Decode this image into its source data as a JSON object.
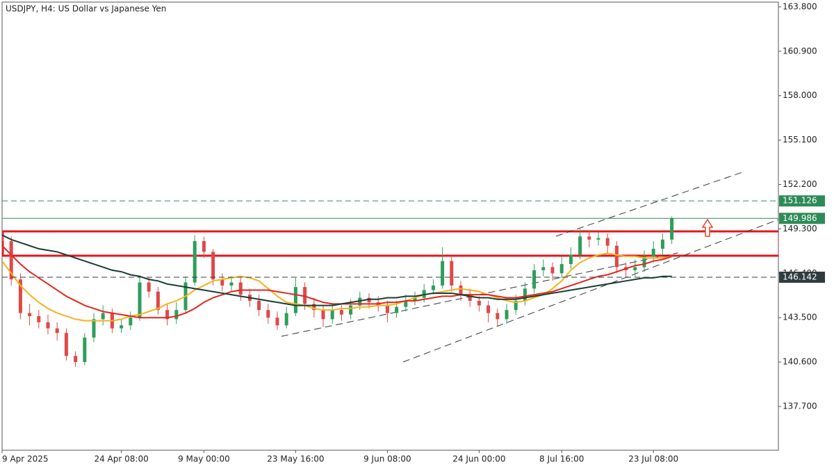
{
  "chart_data": {
    "type": "candlestick",
    "title": "USDJPY, H4:  US Dollar vs Japanese Yen",
    "categories": [
      "9 Apr 2025",
      null,
      null,
      null,
      null,
      null,
      null,
      null,
      null,
      null,
      null,
      null,
      null,
      "24 Apr 08:00",
      null,
      null,
      null,
      null,
      null,
      null,
      null,
      null,
      "9 May 00:00",
      null,
      null,
      null,
      null,
      null,
      null,
      null,
      null,
      null,
      "23 May 16:00",
      null,
      null,
      null,
      null,
      null,
      null,
      null,
      null,
      null,
      "9 Jun 08:00",
      null,
      null,
      null,
      null,
      null,
      null,
      null,
      null,
      null,
      "24 Jun 00:00",
      null,
      null,
      null,
      null,
      null,
      null,
      null,
      null,
      "8 Jul 16:00",
      null,
      null,
      null,
      null,
      null,
      null,
      null,
      null,
      null,
      "23 Jul 08:00",
      null,
      null
    ],
    "open": [
      148.9,
      148.5,
      146.0,
      143.8,
      143.6,
      143.2,
      142.8,
      142.5,
      141.0,
      140.6,
      142.2,
      143.4,
      143.8,
      142.8,
      143.0,
      143.5,
      145.8,
      145.2,
      144.0,
      143.4,
      144.0,
      145.8,
      148.5,
      147.8,
      146.0,
      145.6,
      145.8,
      145.0,
      144.6,
      144.0,
      143.5,
      143.0,
      143.8,
      145.5,
      144.4,
      144.0,
      143.4,
      144.0,
      143.7,
      144.3,
      144.8,
      144.5,
      144.3,
      143.8,
      144.2,
      144.6,
      144.8,
      145.3,
      145.6,
      147.2,
      145.6,
      145.0,
      144.6,
      144.3,
      143.8,
      143.4,
      144.0,
      144.6,
      145.4,
      146.6,
      146.8,
      146.4,
      147.0,
      147.6,
      148.8,
      148.6,
      148.7,
      148.2,
      146.8,
      146.6,
      146.8,
      147.5,
      148.0,
      148.6
    ],
    "high": [
      149.2,
      148.8,
      146.4,
      144.4,
      144.0,
      143.7,
      143.2,
      142.8,
      141.3,
      142.5,
      143.8,
      144.3,
      144.1,
      143.4,
      143.9,
      146.2,
      146.1,
      145.5,
      144.4,
      144.5,
      146.2,
      148.9,
      148.8,
      148.0,
      146.4,
      146.2,
      146.1,
      145.4,
      145.0,
      144.4,
      143.9,
      144.2,
      146.1,
      145.8,
      144.8,
      144.3,
      144.4,
      144.3,
      144.7,
      145.2,
      145.1,
      144.9,
      144.6,
      144.6,
      145.0,
      145.2,
      145.7,
      146.0,
      148.1,
      147.5,
      145.9,
      145.4,
      144.9,
      144.6,
      144.1,
      144.4,
      145.0,
      145.8,
      147.0,
      147.3,
      147.1,
      147.5,
      148.1,
      149.3,
      149.2,
      149.1,
      149.0,
      148.5,
      147.1,
      147.3,
      147.9,
      148.5,
      149.0,
      150.1
    ],
    "low": [
      147.8,
      145.6,
      143.4,
      143.0,
      142.8,
      142.4,
      142.0,
      140.7,
      140.3,
      140.4,
      141.9,
      143.0,
      142.5,
      142.5,
      142.7,
      143.3,
      144.8,
      143.7,
      143.0,
      143.1,
      143.8,
      145.6,
      147.4,
      145.6,
      145.2,
      145.2,
      144.6,
      144.2,
      143.6,
      143.1,
      142.7,
      142.8,
      143.6,
      144.0,
      143.5,
      142.9,
      143.1,
      143.3,
      143.4,
      144.0,
      144.1,
      143.9,
      143.2,
      143.5,
      143.9,
      144.3,
      144.5,
      145.0,
      145.4,
      145.2,
      144.6,
      144.2,
      143.9,
      143.2,
      142.9,
      143.1,
      143.7,
      144.3,
      145.1,
      146.2,
      145.9,
      146.1,
      146.7,
      147.3,
      148.1,
      148.2,
      147.7,
      146.4,
      146.1,
      146.2,
      146.5,
      147.1,
      147.6,
      148.3
    ],
    "close": [
      148.5,
      146.0,
      143.8,
      143.6,
      143.2,
      142.8,
      142.5,
      141.0,
      140.6,
      142.2,
      143.4,
      143.8,
      142.8,
      143.0,
      143.5,
      145.8,
      145.2,
      144.0,
      143.4,
      144.0,
      145.8,
      148.5,
      147.8,
      146.0,
      145.6,
      145.8,
      145.0,
      144.6,
      144.0,
      143.5,
      143.0,
      143.8,
      145.5,
      144.4,
      144.0,
      143.4,
      144.0,
      143.7,
      144.3,
      144.8,
      144.5,
      144.3,
      143.8,
      144.2,
      144.6,
      144.8,
      145.3,
      145.6,
      147.2,
      145.6,
      145.0,
      144.6,
      144.3,
      143.8,
      143.4,
      144.0,
      144.6,
      145.4,
      146.6,
      146.8,
      146.4,
      147.0,
      147.6,
      148.8,
      148.6,
      148.7,
      148.2,
      146.8,
      146.6,
      146.8,
      147.5,
      148.0,
      148.6,
      149.98
    ],
    "up_color": "#2e9e5b",
    "down_color": "#e04848",
    "lines": [
      {
        "color": "#f5b21c",
        "values": [
          147.2,
          146.4,
          145.6,
          145.0,
          144.5,
          144.1,
          143.8,
          143.6,
          143.4,
          143.3,
          143.3,
          143.3,
          143.3,
          143.4,
          143.6,
          143.7,
          143.9,
          144.1,
          144.4,
          144.6,
          144.9,
          145.3,
          145.6,
          145.9,
          146.0,
          146.1,
          146.2,
          146.1,
          145.9,
          145.4,
          144.9,
          144.5,
          144.4,
          144.3,
          144.1,
          144.0,
          144.0,
          144.1,
          144.1,
          144.2,
          144.2,
          144.3,
          144.3,
          144.4,
          144.6,
          144.8,
          145.0,
          145.1,
          145.2,
          145.3,
          145.4,
          145.3,
          145.2,
          145.0,
          144.8,
          144.6,
          144.5,
          144.6,
          144.8,
          145.0,
          145.4,
          145.9,
          146.6,
          147.1,
          147.4,
          147.6,
          147.7,
          147.6,
          147.5,
          147.5,
          147.4,
          147.4,
          147.4,
          147.5
        ]
      },
      {
        "color": "#e3261f",
        "values": [
          148.2,
          147.6,
          147.0,
          146.5,
          146.1,
          145.7,
          145.3,
          144.9,
          144.6,
          144.3,
          144.1,
          143.9,
          143.8,
          143.7,
          143.6,
          143.5,
          143.5,
          143.5,
          143.5,
          143.6,
          143.8,
          144.1,
          144.5,
          144.8,
          145.0,
          145.2,
          145.3,
          145.3,
          145.3,
          145.3,
          145.2,
          145.1,
          145.0,
          144.9,
          144.7,
          144.5,
          144.4,
          144.4,
          144.4,
          144.4,
          144.4,
          144.4,
          144.5,
          144.5,
          144.6,
          144.6,
          144.7,
          144.8,
          144.9,
          144.9,
          145.0,
          145.0,
          145.0,
          145.0,
          144.9,
          144.8,
          144.8,
          144.9,
          145.0,
          145.1,
          145.2,
          145.4,
          145.6,
          145.8,
          146.0,
          146.2,
          146.3,
          146.5,
          146.7,
          146.9,
          147.0,
          147.2,
          147.3,
          147.5
        ]
      },
      {
        "color": "#163f33",
        "values": [
          148.9,
          148.6,
          148.4,
          148.2,
          148.0,
          147.9,
          147.8,
          147.6,
          147.4,
          147.2,
          147.0,
          146.8,
          146.6,
          146.5,
          146.3,
          146.2,
          146.0,
          145.9,
          145.7,
          145.6,
          145.5,
          145.4,
          145.3,
          145.2,
          145.1,
          145.0,
          144.9,
          144.8,
          144.7,
          144.6,
          144.5,
          144.4,
          144.3,
          144.3,
          144.3,
          144.3,
          144.3,
          144.4,
          144.5,
          144.6,
          144.7,
          144.7,
          144.8,
          144.8,
          144.9,
          144.9,
          145.0,
          145.1,
          145.1,
          145.1,
          145.0,
          144.9,
          144.8,
          144.8,
          144.7,
          144.7,
          144.7,
          144.8,
          144.9,
          145.0,
          145.1,
          145.2,
          145.3,
          145.4,
          145.5,
          145.6,
          145.7,
          145.8,
          145.9,
          146.0,
          146.1,
          146.1,
          146.2,
          146.2
        ]
      }
    ],
    "price_lines": [
      {
        "value": 151.126,
        "label": "151.126",
        "color": "#2e8b57",
        "style": "dashed"
      },
      {
        "value": 149.986,
        "label": "149.986",
        "color": "#2e8b57",
        "style": "solid"
      },
      {
        "value": 146.142,
        "label": "146.142",
        "color": "#2f3b3f",
        "style": "dashed"
      }
    ],
    "ylim": [
      134.84,
      164.25
    ],
    "yticks": [
      {
        "value": 163.8,
        "label": "163.800"
      },
      {
        "value": 160.9,
        "label": "160.900"
      },
      {
        "value": 158.0,
        "label": "158.000"
      },
      {
        "value": 155.1,
        "label": "155.100"
      },
      {
        "value": 152.2,
        "label": "152.200"
      },
      {
        "value": 149.3,
        "label": "149.300"
      },
      {
        "value": 146.4,
        "label": "146.400"
      },
      {
        "value": 143.5,
        "label": "143.500"
      },
      {
        "value": 140.6,
        "label": "140.600"
      },
      {
        "value": 137.7,
        "label": "137.700"
      }
    ],
    "grid": false
  }
}
